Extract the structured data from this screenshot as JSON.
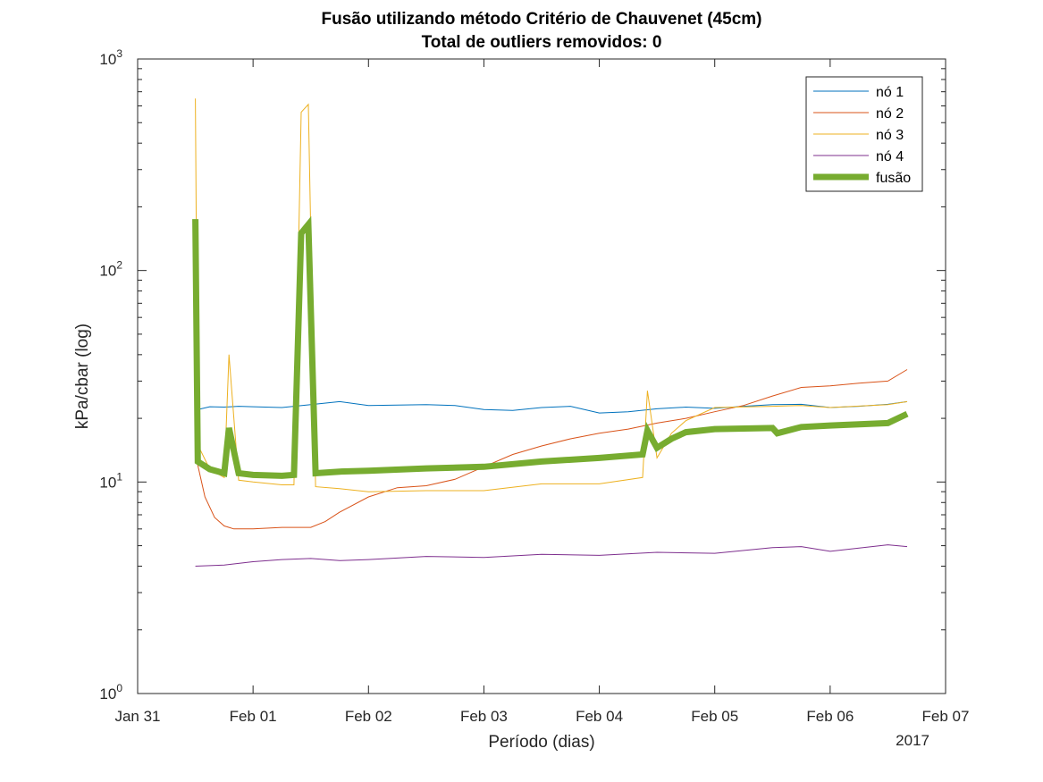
{
  "chart_data": {
    "type": "line",
    "title": "Fusão utilizando método Critério de Chauvenet (45cm)",
    "subtitle": "Total de outliers removidos: 0",
    "xlabel": "Período (dias)",
    "ylabel": "kPa/cbar (log)",
    "x_year_label": "2017",
    "yscale": "log",
    "ylim": [
      1,
      1000
    ],
    "xlim": [
      "2017-01-31",
      "2017-02-07"
    ],
    "x_ticks": [
      "Jan 31",
      "Feb 01",
      "Feb 02",
      "Feb 03",
      "Feb 04",
      "Feb 05",
      "Feb 06",
      "Feb 07"
    ],
    "y_ticks": [
      {
        "base": "10",
        "exp": "0",
        "value": 1
      },
      {
        "base": "10",
        "exp": "1",
        "value": 10
      },
      {
        "base": "10",
        "exp": "2",
        "value": 100
      },
      {
        "base": "10",
        "exp": "3",
        "value": 1000
      }
    ],
    "legend_position": "top-right",
    "grid": false,
    "series": [
      {
        "name": "nó 1",
        "color": "#0072BD",
        "points": [
          [
            "2017-01-31 12:00",
            14
          ],
          [
            "2017-01-31 12:30",
            22
          ],
          [
            "2017-01-31 15:00",
            22.7
          ],
          [
            "2017-01-31 18:00",
            22.6
          ],
          [
            "2017-01-31 21:00",
            22.8
          ],
          [
            "2017-02-01 00:00",
            22.7
          ],
          [
            "2017-02-01 06:00",
            22.5
          ],
          [
            "2017-02-01 12:00",
            23.2
          ],
          [
            "2017-02-01 18:00",
            24
          ],
          [
            "2017-02-02 00:00",
            23
          ],
          [
            "2017-02-02 12:00",
            23.2
          ],
          [
            "2017-02-02 18:00",
            23
          ],
          [
            "2017-02-03 00:00",
            22
          ],
          [
            "2017-02-03 06:00",
            21.8
          ],
          [
            "2017-02-03 12:00",
            22.5
          ],
          [
            "2017-02-03 18:00",
            22.8
          ],
          [
            "2017-02-04 00:00",
            21.2
          ],
          [
            "2017-02-04 06:00",
            21.5
          ],
          [
            "2017-02-04 12:00",
            22.2
          ],
          [
            "2017-02-04 18:00",
            22.6
          ],
          [
            "2017-02-05 00:00",
            22.3
          ],
          [
            "2017-02-05 06:00",
            22.8
          ],
          [
            "2017-02-05 12:00",
            23.2
          ],
          [
            "2017-02-05 18:00",
            23.3
          ],
          [
            "2017-02-06 00:00",
            22.5
          ],
          [
            "2017-02-06 06:00",
            22.8
          ],
          [
            "2017-02-06 12:00",
            23.3
          ],
          [
            "2017-02-06 16:00",
            24
          ]
        ]
      },
      {
        "name": "nó 2",
        "color": "#D95319",
        "points": [
          [
            "2017-01-31 12:00",
            13.5
          ],
          [
            "2017-01-31 14:00",
            8.5
          ],
          [
            "2017-01-31 16:00",
            6.8
          ],
          [
            "2017-01-31 18:00",
            6.2
          ],
          [
            "2017-01-31 20:00",
            6
          ],
          [
            "2017-02-01 00:00",
            6
          ],
          [
            "2017-02-01 06:00",
            6.1
          ],
          [
            "2017-02-01 12:00",
            6.1
          ],
          [
            "2017-02-01 15:00",
            6.5
          ],
          [
            "2017-02-01 18:00",
            7.2
          ],
          [
            "2017-02-02 00:00",
            8.5
          ],
          [
            "2017-02-02 06:00",
            9.4
          ],
          [
            "2017-02-02 12:00",
            9.6
          ],
          [
            "2017-02-02 18:00",
            10.3
          ],
          [
            "2017-02-03 00:00",
            11.8
          ],
          [
            "2017-02-03 06:00",
            13.5
          ],
          [
            "2017-02-03 12:00",
            14.8
          ],
          [
            "2017-02-03 18:00",
            16
          ],
          [
            "2017-02-04 00:00",
            17
          ],
          [
            "2017-02-04 06:00",
            17.8
          ],
          [
            "2017-02-04 12:00",
            19
          ],
          [
            "2017-02-04 18:00",
            20
          ],
          [
            "2017-02-05 00:00",
            21.5
          ],
          [
            "2017-02-05 06:00",
            23
          ],
          [
            "2017-02-05 12:00",
            25.5
          ],
          [
            "2017-02-05 18:00",
            28
          ],
          [
            "2017-02-06 00:00",
            28.5
          ],
          [
            "2017-02-06 06:00",
            29.3
          ],
          [
            "2017-02-06 12:00",
            30
          ],
          [
            "2017-02-06 16:00",
            34
          ]
        ]
      },
      {
        "name": "nó 3",
        "color": "#EDB120",
        "points": [
          [
            "2017-01-31 12:00",
            650
          ],
          [
            "2017-01-31 12:30",
            15
          ],
          [
            "2017-01-31 15:00",
            11.5
          ],
          [
            "2017-01-31 18:00",
            10.5
          ],
          [
            "2017-01-31 19:00",
            40
          ],
          [
            "2017-01-31 21:00",
            10.2
          ],
          [
            "2017-02-01 00:00",
            10
          ],
          [
            "2017-02-01 06:00",
            9.7
          ],
          [
            "2017-02-01 08:30",
            9.7
          ],
          [
            "2017-02-01 10:00",
            560
          ],
          [
            "2017-02-01 11:30",
            610
          ],
          [
            "2017-02-01 13:00",
            9.5
          ],
          [
            "2017-02-01 18:00",
            9.3
          ],
          [
            "2017-02-02 00:00",
            9
          ],
          [
            "2017-02-02 12:00",
            9.1
          ],
          [
            "2017-02-03 00:00",
            9.1
          ],
          [
            "2017-02-03 12:00",
            9.8
          ],
          [
            "2017-02-04 00:00",
            9.8
          ],
          [
            "2017-02-04 09:00",
            10.5
          ],
          [
            "2017-02-04 10:00",
            27
          ],
          [
            "2017-02-04 12:00",
            13
          ],
          [
            "2017-02-04 15:00",
            17
          ],
          [
            "2017-02-04 18:00",
            19.5
          ],
          [
            "2017-02-05 00:00",
            22.5
          ],
          [
            "2017-02-05 12:00",
            22.8
          ],
          [
            "2017-02-05 18:00",
            23
          ],
          [
            "2017-02-06 00:00",
            22.5
          ],
          [
            "2017-02-06 12:00",
            23.2
          ],
          [
            "2017-02-06 16:00",
            24
          ]
        ]
      },
      {
        "name": "nó 4",
        "color": "#7E2F8E",
        "points": [
          [
            "2017-01-31 12:00",
            4
          ],
          [
            "2017-01-31 18:00",
            4.05
          ],
          [
            "2017-02-01 00:00",
            4.2
          ],
          [
            "2017-02-01 06:00",
            4.3
          ],
          [
            "2017-02-01 12:00",
            4.35
          ],
          [
            "2017-02-01 18:00",
            4.25
          ],
          [
            "2017-02-02 00:00",
            4.3
          ],
          [
            "2017-02-02 12:00",
            4.45
          ],
          [
            "2017-02-03 00:00",
            4.4
          ],
          [
            "2017-02-03 12:00",
            4.55
          ],
          [
            "2017-02-04 00:00",
            4.5
          ],
          [
            "2017-02-04 12:00",
            4.65
          ],
          [
            "2017-02-05 00:00",
            4.6
          ],
          [
            "2017-02-05 12:00",
            4.9
          ],
          [
            "2017-02-05 18:00",
            4.95
          ],
          [
            "2017-02-06 00:00",
            4.7
          ],
          [
            "2017-02-06 12:00",
            5.05
          ],
          [
            "2017-02-06 16:00",
            4.95
          ]
        ]
      },
      {
        "name": "fusão",
        "color": "#77AC30",
        "points": [
          [
            "2017-01-31 12:00",
            175
          ],
          [
            "2017-01-31 12:30",
            12.5
          ],
          [
            "2017-01-31 15:00",
            11.5
          ],
          [
            "2017-01-31 18:00",
            11
          ],
          [
            "2017-01-31 19:00",
            18
          ],
          [
            "2017-01-31 21:00",
            11
          ],
          [
            "2017-02-01 00:00",
            10.8
          ],
          [
            "2017-02-01 06:00",
            10.7
          ],
          [
            "2017-02-01 08:30",
            10.8
          ],
          [
            "2017-02-01 10:00",
            150
          ],
          [
            "2017-02-01 11:30",
            165
          ],
          [
            "2017-02-01 13:00",
            11
          ],
          [
            "2017-02-01 18:00",
            11.2
          ],
          [
            "2017-02-02 00:00",
            11.3
          ],
          [
            "2017-02-02 12:00",
            11.6
          ],
          [
            "2017-02-03 00:00",
            11.8
          ],
          [
            "2017-02-03 12:00",
            12.5
          ],
          [
            "2017-02-04 00:00",
            13
          ],
          [
            "2017-02-04 09:00",
            13.5
          ],
          [
            "2017-02-04 10:00",
            17.5
          ],
          [
            "2017-02-04 12:00",
            14.5
          ],
          [
            "2017-02-04 15:00",
            16
          ],
          [
            "2017-02-04 18:00",
            17.2
          ],
          [
            "2017-02-05 00:00",
            17.8
          ],
          [
            "2017-02-05 12:00",
            18
          ],
          [
            "2017-02-05 13:00",
            17
          ],
          [
            "2017-02-05 18:00",
            18.2
          ],
          [
            "2017-02-06 00:00",
            18.5
          ],
          [
            "2017-02-06 12:00",
            19
          ],
          [
            "2017-02-06 16:00",
            21
          ]
        ]
      }
    ]
  }
}
